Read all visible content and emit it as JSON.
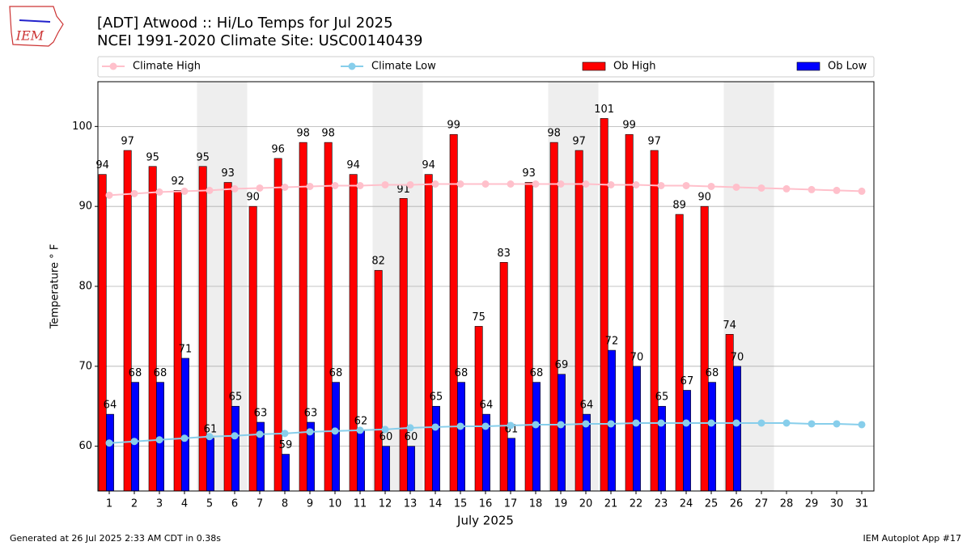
{
  "logo": "IEM",
  "chart_data": {
    "type": "bar",
    "title": "[ADT] Atwood :: Hi/Lo Temps for Jul 2025",
    "subtitle": "NCEI 1991-2020 Climate Site: USC00140439",
    "xlabel": "July 2025",
    "ylabel": "Temperature ° F",
    "footer_left": "Generated at 26 Jul 2025 2:33 AM CDT in 0.38s",
    "footer_right": "IEM Autoplot App #17",
    "categories": [
      "1",
      "2",
      "3",
      "4",
      "5",
      "6",
      "7",
      "8",
      "9",
      "10",
      "11",
      "12",
      "13",
      "14",
      "15",
      "16",
      "17",
      "18",
      "19",
      "20",
      "21",
      "22",
      "23",
      "24",
      "25",
      "26",
      "27",
      "28",
      "29",
      "30",
      "31"
    ],
    "ylim": [
      54.4,
      105.6
    ],
    "yticks": [
      60,
      70,
      80,
      90,
      100
    ],
    "grid": true,
    "series": [
      {
        "name": "Climate High",
        "type": "line",
        "color": "#ffc0cb",
        "values": [
          91.4,
          91.6,
          91.8,
          91.9,
          92.0,
          92.2,
          92.3,
          92.4,
          92.5,
          92.6,
          92.6,
          92.7,
          92.7,
          92.8,
          92.8,
          92.8,
          92.8,
          92.8,
          92.8,
          92.8,
          92.7,
          92.7,
          92.6,
          92.6,
          92.5,
          92.4,
          92.3,
          92.2,
          92.1,
          92.0,
          91.9
        ]
      },
      {
        "name": "Climate Low",
        "type": "line",
        "color": "#87ceeb",
        "values": [
          60.4,
          60.6,
          60.8,
          61.0,
          61.2,
          61.3,
          61.5,
          61.6,
          61.8,
          61.9,
          62.0,
          62.1,
          62.3,
          62.4,
          62.5,
          62.5,
          62.6,
          62.7,
          62.7,
          62.8,
          62.8,
          62.9,
          62.9,
          62.9,
          62.9,
          62.9,
          62.9,
          62.9,
          62.8,
          62.8,
          62.7
        ]
      },
      {
        "name": "Ob High",
        "type": "bar",
        "color": "#ff0000",
        "values": [
          94,
          97,
          95,
          92,
          95,
          93,
          90,
          96,
          98,
          98,
          94,
          82,
          91,
          94,
          99,
          75,
          83,
          93,
          98,
          97,
          101,
          99,
          97,
          89,
          90,
          74,
          null,
          null,
          null,
          null,
          null
        ]
      },
      {
        "name": "Ob Low",
        "type": "bar",
        "color": "#0000ff",
        "values": [
          64,
          68,
          68,
          71,
          61,
          65,
          63,
          59,
          63,
          68,
          62,
          60,
          60,
          65,
          68,
          64,
          61,
          68,
          69,
          64,
          72,
          70,
          65,
          67,
          68,
          70,
          null,
          null,
          null,
          null,
          null
        ]
      }
    ]
  }
}
